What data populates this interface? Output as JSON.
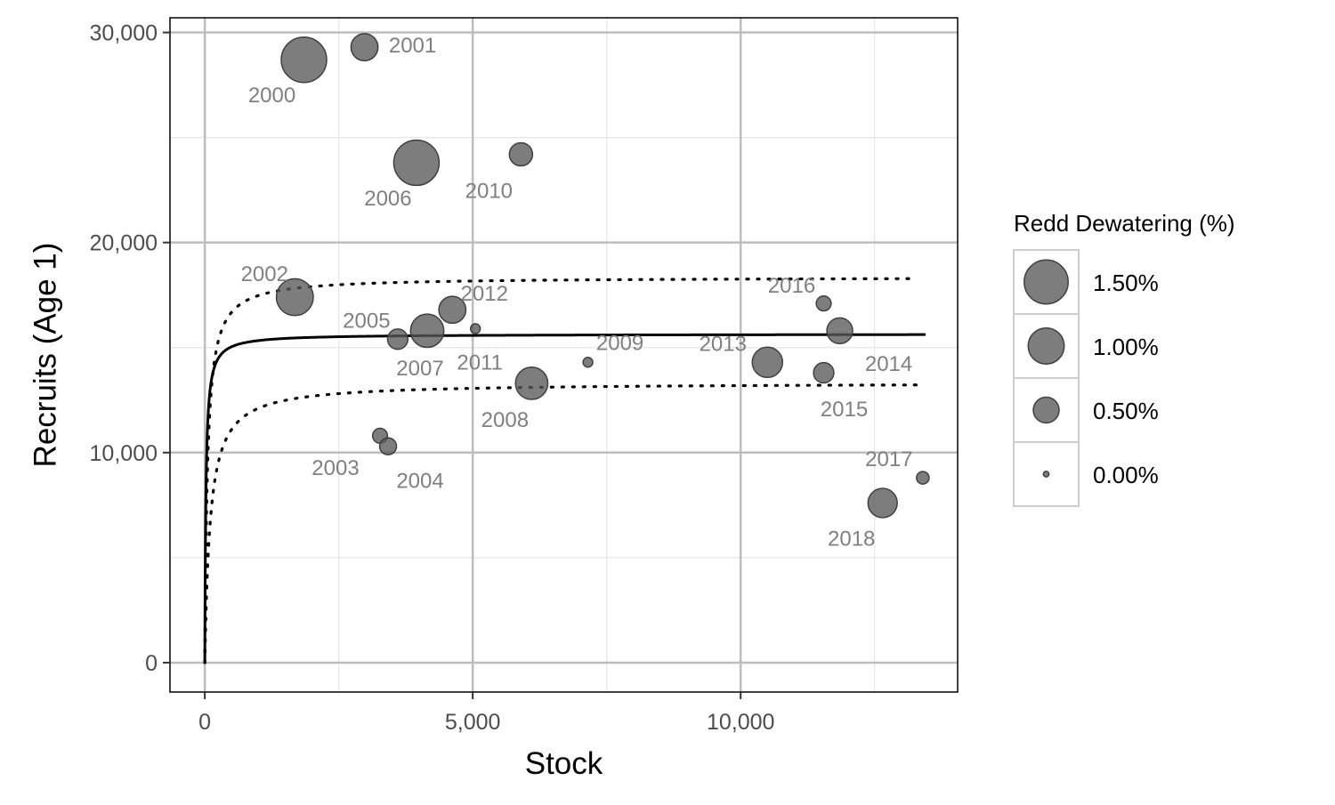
{
  "chart_data": {
    "type": "scatter",
    "title": "",
    "xlabel": "Stock",
    "ylabel": "Recruits (Age 1)",
    "xlim": [
      -650,
      14050
    ],
    "ylim": [
      -1400,
      30700
    ],
    "x_ticks": [
      0,
      5000,
      10000
    ],
    "x_tick_labels": [
      "0",
      "5,000",
      "10,000"
    ],
    "y_ticks": [
      0,
      10000,
      20000,
      30000
    ],
    "y_tick_labels": [
      "0",
      "10,000",
      "20,000",
      "30,000"
    ],
    "grid": true,
    "points": [
      {
        "label": "2000",
        "x": 1850,
        "y": 28700,
        "dewatering_pct": 1.6
      },
      {
        "label": "2001",
        "x": 2980,
        "y": 29300,
        "dewatering_pct": 0.55
      },
      {
        "label": "2002",
        "x": 1680,
        "y": 17400,
        "dewatering_pct": 1.05
      },
      {
        "label": "2003",
        "x": 3270,
        "y": 10800,
        "dewatering_pct": 0.15
      },
      {
        "label": "2004",
        "x": 3420,
        "y": 10300,
        "dewatering_pct": 0.2
      },
      {
        "label": "2005",
        "x": 3600,
        "y": 15400,
        "dewatering_pct": 0.3
      },
      {
        "label": "2006",
        "x": 3950,
        "y": 23800,
        "dewatering_pct": 1.6
      },
      {
        "label": "2007",
        "x": 4150,
        "y": 15800,
        "dewatering_pct": 0.85
      },
      {
        "label": "2008",
        "x": 6100,
        "y": 13300,
        "dewatering_pct": 0.8
      },
      {
        "label": "2009",
        "x": 7150,
        "y": 14300,
        "dewatering_pct": 0.05
      },
      {
        "label": "2010",
        "x": 5900,
        "y": 24200,
        "dewatering_pct": 0.4
      },
      {
        "label": "2011",
        "x": 5050,
        "y": 15900,
        "dewatering_pct": 0.05
      },
      {
        "label": "2012",
        "x": 4620,
        "y": 16800,
        "dewatering_pct": 0.55
      },
      {
        "label": "2013",
        "x": 10500,
        "y": 14300,
        "dewatering_pct": 0.7
      },
      {
        "label": "2014",
        "x": 11850,
        "y": 15800,
        "dewatering_pct": 0.5
      },
      {
        "label": "2015",
        "x": 11550,
        "y": 13800,
        "dewatering_pct": 0.3
      },
      {
        "label": "2016",
        "x": 11550,
        "y": 17100,
        "dewatering_pct": 0.15
      },
      {
        "label": "2017",
        "x": 13400,
        "y": 8800,
        "dewatering_pct": 0.1
      },
      {
        "label": "2018",
        "x": 12650,
        "y": 7600,
        "dewatering_pct": 0.65
      }
    ],
    "series": [
      {
        "style": "solid",
        "alpha": 15640,
        "beta": 20,
        "x_max": 13450
      },
      {
        "style": "dotted",
        "alpha": 18350,
        "beta": 50,
        "x_max": 13300
      },
      {
        "style": "dotted",
        "alpha": 13320,
        "beta": 100,
        "x_max": 13300
      }
    ],
    "legend": {
      "title": "Redd Dewatering (%)",
      "position": "right",
      "entries": [
        {
          "label": "1.50%",
          "value": 1.5
        },
        {
          "label": "1.00%",
          "value": 1.0
        },
        {
          "label": "0.50%",
          "value": 0.5
        },
        {
          "label": "0.00%",
          "value": 0.0
        }
      ]
    },
    "colors": {
      "point_fill": "#595959",
      "point_stroke": "#404040",
      "point_label": "#808080",
      "major_grid": "#bdbdbd",
      "minor_grid": "#e6e6e6",
      "curve": "#000000"
    }
  }
}
